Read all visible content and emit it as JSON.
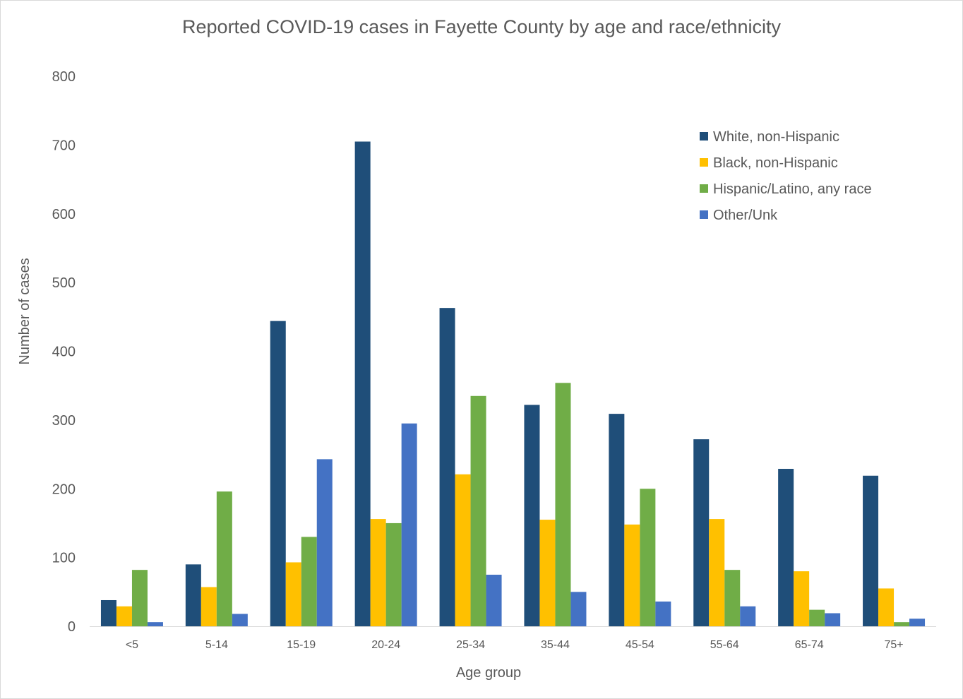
{
  "chart_data": {
    "type": "bar",
    "title": "Reported COVID-19 cases in Fayette County by age and race/ethnicity",
    "xlabel": "Age group",
    "ylabel": "Number of cases",
    "ylim": [
      0,
      800
    ],
    "yticks": [
      0,
      100,
      200,
      300,
      400,
      500,
      600,
      700,
      800
    ],
    "grid": false,
    "legend_position": "top-right",
    "categories": [
      "<5",
      "5-14",
      "15-19",
      "20-24",
      "25-34",
      "35-44",
      "45-54",
      "55-64",
      "65-74",
      "75+"
    ],
    "series": [
      {
        "name": "White, non-Hispanic",
        "color": "#1f4e79",
        "values": [
          38,
          90,
          444,
          705,
          463,
          322,
          309,
          272,
          229,
          219
        ]
      },
      {
        "name": "Black, non-Hispanic",
        "color": "#ffc000",
        "values": [
          29,
          57,
          93,
          156,
          221,
          155,
          148,
          156,
          80,
          55
        ]
      },
      {
        "name": "Hispanic/Latino, any race",
        "color": "#70ad47",
        "values": [
          82,
          196,
          130,
          150,
          335,
          354,
          200,
          82,
          24,
          6
        ]
      },
      {
        "name": "Other/Unk",
        "color": "#4472c4",
        "values": [
          6,
          18,
          243,
          295,
          75,
          50,
          36,
          29,
          19,
          11
        ]
      }
    ]
  }
}
